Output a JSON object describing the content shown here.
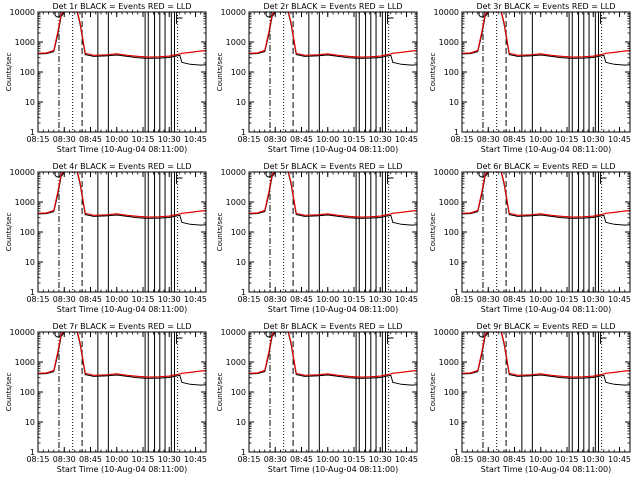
{
  "chart_data": {
    "type": "line",
    "ylabel": "Counts/sec",
    "xlabel": "Start Time (10-Aug-04 08:11:00)",
    "yscale": "log",
    "ylim": [
      1,
      10000
    ],
    "xlim_minutes": [
      8.25,
      9.85
    ],
    "x_tick_labels": [
      "08:15",
      "08:30",
      "08:45",
      "10:00",
      "10:15",
      "10:30",
      "10:45"
    ],
    "y_tick_labels": [
      "1",
      "10",
      "100",
      "1000",
      "10000"
    ],
    "y_tick_values": [
      1,
      10,
      100,
      1000,
      10000
    ],
    "x_tick_positions": [
      8.25,
      8.5,
      8.75,
      9.0,
      9.25,
      9.5,
      9.75
    ],
    "markers": {
      "dash_dot": 8.45,
      "long_dash": 8.67,
      "dotted": [
        8.58,
        9.58
      ],
      "solid_left": [
        8.82,
        8.92
      ],
      "solid_mid": [
        9.27,
        9.3,
        9.36,
        9.41,
        9.46,
        9.52
      ],
      "solid_right": [
        9.55
      ],
      "bracket": 9.57
    },
    "events_curve": {
      "x": [
        8.25,
        8.33,
        8.4,
        8.44,
        8.47,
        8.52,
        8.57,
        8.62,
        8.65,
        8.7,
        8.78,
        8.9,
        9.0,
        9.1,
        9.2,
        9.3,
        9.4,
        9.5,
        9.55,
        9.6,
        9.62,
        9.7,
        9.8,
        9.85
      ],
      "y": [
        400,
        410,
        480,
        1800,
        7000,
        12000,
        12000,
        11000,
        4000,
        380,
        330,
        345,
        370,
        330,
        300,
        285,
        290,
        305,
        330,
        360,
        210,
        180,
        170,
        175
      ]
    },
    "lld_curve": {
      "x": [
        8.25,
        8.33,
        8.4,
        8.44,
        8.47,
        8.52,
        8.57,
        8.62,
        8.65,
        8.7,
        8.78,
        8.9,
        9.0,
        9.1,
        9.2,
        9.3,
        9.4,
        9.5,
        9.55,
        9.6,
        9.62,
        9.7,
        9.8,
        9.85
      ],
      "y": [
        420,
        430,
        520,
        2200,
        8000,
        13000,
        13000,
        12000,
        4500,
        420,
        360,
        375,
        400,
        360,
        330,
        315,
        320,
        340,
        370,
        400,
        420,
        450,
        500,
        520
      ]
    },
    "panels": [
      {
        "title": "Det  1r  BLACK = Events  RED = LLD"
      },
      {
        "title": "Det  2r  BLACK = Events  RED = LLD"
      },
      {
        "title": "Det  3r  BLACK = Events  RED = LLD"
      },
      {
        "title": "Det  4r  BLACK = Events  RED = LLD"
      },
      {
        "title": "Det  5r  BLACK = Events  RED = LLD"
      },
      {
        "title": "Det  6r  BLACK = Events  RED = LLD"
      },
      {
        "title": "Det  7r  BLACK = Events  RED = LLD"
      },
      {
        "title": "Det  8r  BLACK = Events  RED = LLD"
      },
      {
        "title": "Det  9r  BLACK = Events  RED = LLD"
      }
    ],
    "colors": {
      "events": "#000000",
      "lld": "#e00000",
      "axes": "#000000",
      "background": "#ffffff"
    }
  }
}
